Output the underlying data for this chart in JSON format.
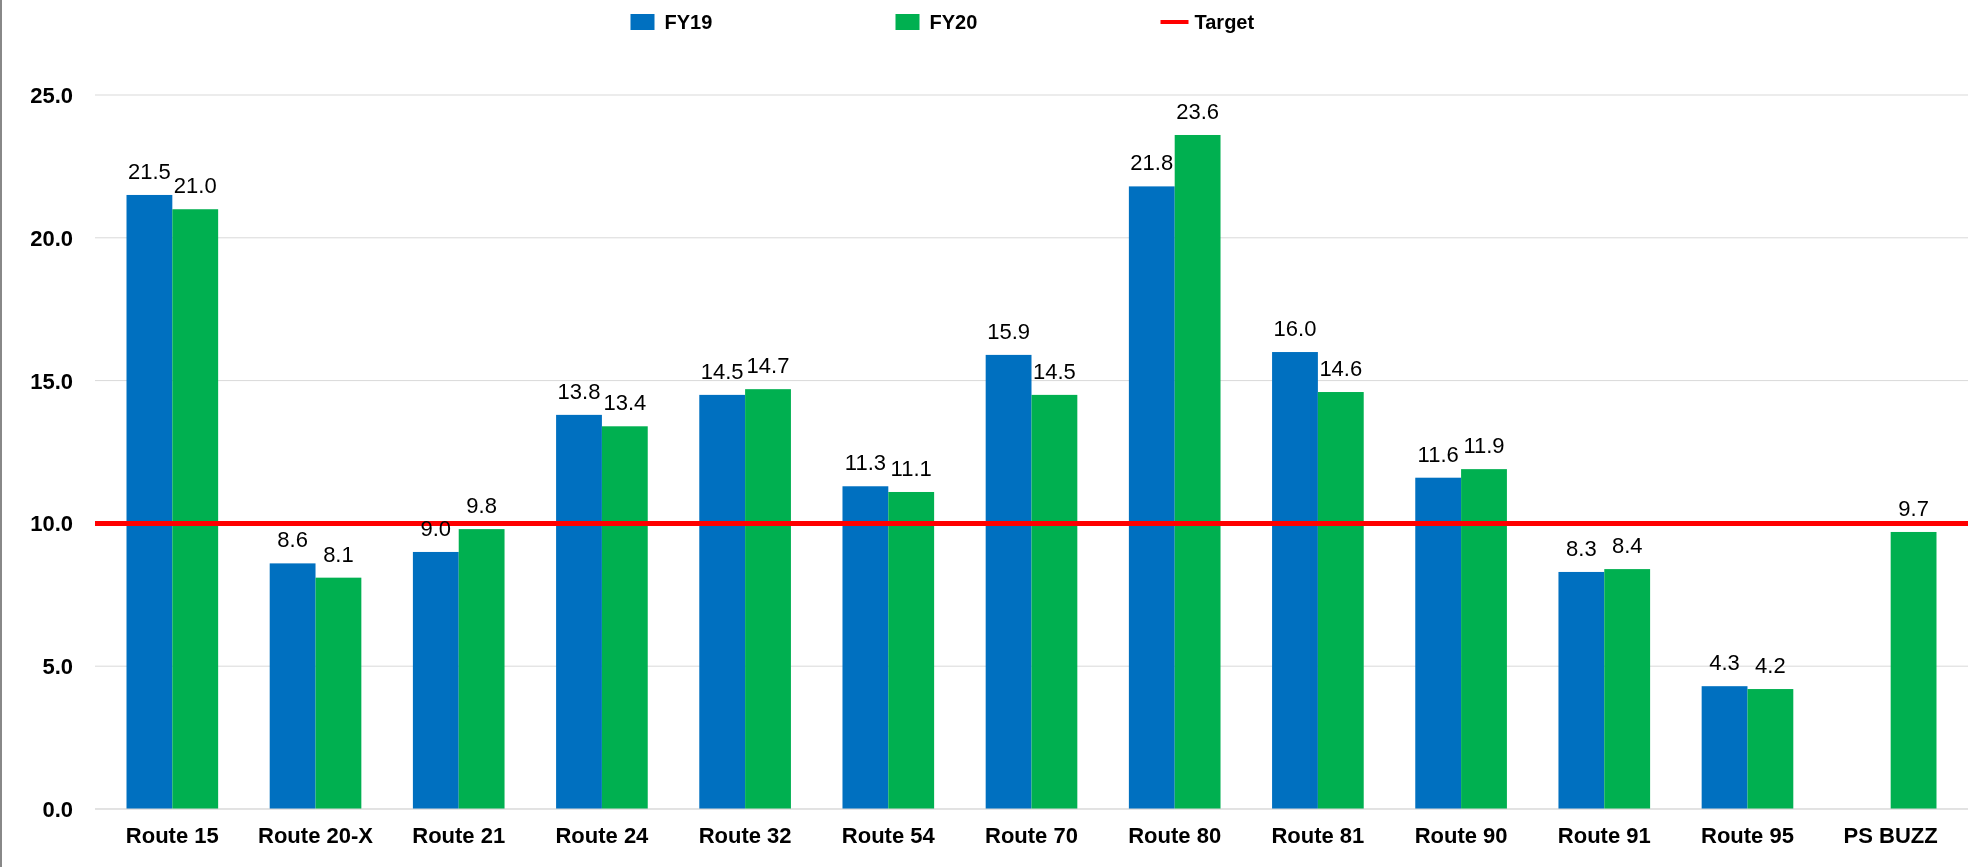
{
  "chart_data": {
    "type": "bar",
    "categories": [
      "Route 15",
      "Route 20-X",
      "Route 21",
      "Route 24",
      "Route 32",
      "Route 54",
      "Route 70",
      "Route 80",
      "Route 81",
      "Route 90",
      "Route 91",
      "Route 95",
      "PS BUZZ"
    ],
    "series": [
      {
        "name": "FY19",
        "color": "#0070c0",
        "values": [
          21.5,
          8.6,
          9.0,
          13.8,
          14.5,
          11.3,
          15.9,
          21.8,
          16.0,
          11.6,
          8.3,
          4.3,
          null
        ],
        "value_labels": [
          "21.5",
          "8.6",
          "9.0",
          "13.8",
          "14.5",
          "11.3",
          "15.9",
          "21.8",
          "16.0",
          "11.6",
          "8.3",
          "4.3",
          null
        ]
      },
      {
        "name": "FY20",
        "color": "#00b050",
        "values": [
          21.0,
          8.1,
          9.8,
          13.4,
          14.7,
          11.1,
          14.5,
          23.6,
          14.6,
          11.9,
          8.4,
          4.2,
          9.7
        ],
        "value_labels": [
          "21.0",
          "8.1",
          "9.8",
          "13.4",
          "14.7",
          "11.1",
          "14.5",
          "23.6",
          "14.6",
          "11.9",
          "8.4",
          "4.2",
          "9.7"
        ]
      }
    ],
    "ref_lines": [
      {
        "axis": "y",
        "value": 10,
        "label": "Target",
        "color": "#ff0000",
        "line_style": "solid"
      }
    ],
    "ylim": [
      0,
      25
    ],
    "yticks": [
      {
        "value": 0,
        "label": "0.0"
      },
      {
        "value": 5,
        "label": "5.0"
      },
      {
        "value": 10,
        "label": "10.0"
      },
      {
        "value": 15,
        "label": "15.0"
      },
      {
        "value": 20,
        "label": "20.0"
      },
      {
        "value": 25,
        "label": "25.0"
      }
    ],
    "grid": "y",
    "legend": "top"
  }
}
